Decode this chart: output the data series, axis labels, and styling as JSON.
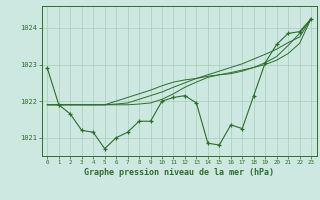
{
  "bg_color": "#cce8e0",
  "plot_bg_color": "#cce8e0",
  "grid_color": "#aaccbb",
  "line_color": "#2d6e2d",
  "title": "Graphe pression niveau de la mer (hPa)",
  "ylim": [
    1020.5,
    1024.6
  ],
  "xlim": [
    -0.5,
    23.5
  ],
  "yticks": [
    1021,
    1022,
    1023,
    1024
  ],
  "xticks": [
    0,
    1,
    2,
    3,
    4,
    5,
    6,
    7,
    8,
    9,
    10,
    11,
    12,
    13,
    14,
    15,
    16,
    17,
    18,
    19,
    20,
    21,
    22,
    23
  ],
  "main_series": [
    1022.9,
    1021.9,
    1021.65,
    1021.2,
    1021.15,
    1020.7,
    1021.0,
    1021.15,
    1021.45,
    1021.45,
    1022.0,
    1022.1,
    1022.15,
    1021.95,
    1020.85,
    1020.8,
    1021.35,
    1021.25,
    1022.15,
    1023.05,
    1023.55,
    1023.85,
    1023.9,
    1024.25
  ],
  "smooth_line1": [
    1021.9,
    1021.9,
    1021.9,
    1021.9,
    1021.9,
    1021.9,
    1021.92,
    1021.95,
    1022.05,
    1022.15,
    1022.25,
    1022.38,
    1022.5,
    1022.62,
    1022.72,
    1022.82,
    1022.92,
    1023.02,
    1023.15,
    1023.28,
    1023.42,
    1023.6,
    1023.75,
    1024.25
  ],
  "smooth_line2": [
    1021.9,
    1021.9,
    1021.9,
    1021.9,
    1021.9,
    1021.9,
    1022.0,
    1022.1,
    1022.2,
    1022.3,
    1022.42,
    1022.52,
    1022.58,
    1022.62,
    1022.68,
    1022.72,
    1022.78,
    1022.85,
    1022.92,
    1023.0,
    1023.12,
    1023.3,
    1023.58,
    1024.25
  ],
  "smooth_line3": [
    1021.9,
    1021.9,
    1021.9,
    1021.9,
    1021.9,
    1021.9,
    1021.9,
    1021.9,
    1021.92,
    1021.95,
    1022.05,
    1022.2,
    1022.38,
    1022.52,
    1022.65,
    1022.72,
    1022.75,
    1022.82,
    1022.92,
    1023.05,
    1023.22,
    1023.52,
    1023.85,
    1024.25
  ]
}
